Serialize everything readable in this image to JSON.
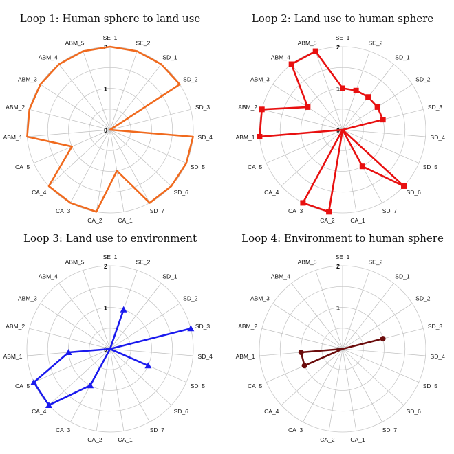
{
  "chart_data": [
    {
      "type": "radar",
      "title": "Loop 1: Human sphere to land use",
      "axes": [
        "SE_1",
        "SE_2",
        "SD_1",
        "SD_2",
        "SD_3",
        "SD_4",
        "SD_5",
        "SD_6",
        "SD_7",
        "CA_1",
        "CA_2",
        "CA_3",
        "CA_4",
        "CA_5",
        "ABM_1",
        "ABM_2",
        "ABM_3",
        "ABM_4",
        "ABM_5"
      ],
      "r_ticks": [
        0,
        1,
        2
      ],
      "rlim": [
        0,
        2
      ],
      "grid_rings": [
        0.5,
        1,
        1.5,
        2
      ],
      "series": [
        {
          "values": [
            2,
            2,
            2,
            2,
            0,
            2,
            2,
            2,
            2,
            1,
            2,
            2,
            2,
            1,
            2,
            2,
            2,
            2,
            2
          ],
          "color": "#f06a1e",
          "marker": "none"
        }
      ]
    },
    {
      "type": "radar",
      "title": "Loop 2: Land use to human sphere",
      "axes": [
        "SE_1",
        "SE_2",
        "SD_1",
        "SD_2",
        "SD_3",
        "SD_4",
        "SD_5",
        "SD_6",
        "SD_7",
        "CA_1",
        "CA_2",
        "CA_3",
        "CA_4",
        "CA_5",
        "ABM_1",
        "ABM_2",
        "ABM_3",
        "ABM_4",
        "ABM_5"
      ],
      "r_ticks": [
        0,
        1,
        2
      ],
      "rlim": [
        0,
        2
      ],
      "grid_rings": [
        0.5,
        1,
        1.5,
        2
      ],
      "series": [
        {
          "values": [
            1,
            1,
            1,
            1,
            1,
            0,
            0,
            2,
            1,
            0,
            2,
            2,
            0,
            0,
            2,
            2,
            1,
            2,
            2
          ],
          "color": "#e81010",
          "marker": "square"
        }
      ]
    },
    {
      "type": "radar",
      "title": "Loop 3: Land use to environment",
      "axes": [
        "SE_1",
        "SE_2",
        "SD_1",
        "SD_2",
        "SD_3",
        "SD_4",
        "SD_5",
        "SD_6",
        "SD_7",
        "CA_1",
        "CA_2",
        "CA_3",
        "CA_4",
        "CA_5",
        "ABM_1",
        "ABM_2",
        "ABM_3",
        "ABM_4",
        "ABM_5"
      ],
      "r_ticks": [
        0,
        1,
        2
      ],
      "rlim": [
        0,
        2
      ],
      "grid_rings": [
        0.5,
        1,
        1.5,
        2
      ],
      "series": [
        {
          "values": [
            0,
            1,
            0,
            0,
            2,
            0,
            1,
            0,
            0,
            0,
            0,
            1,
            2,
            2,
            1,
            0,
            0,
            0,
            0
          ],
          "color": "#1a1aee",
          "marker": "triangle"
        }
      ]
    },
    {
      "type": "radar",
      "title": "Loop 4: Environment to human sphere",
      "axes": [
        "SE_1",
        "SE_2",
        "SD_1",
        "SD_2",
        "SD_3",
        "SD_4",
        "SD_5",
        "SD_6",
        "SD_7",
        "CA_1",
        "CA_2",
        "CA_3",
        "CA_4",
        "CA_5",
        "ABM_1",
        "ABM_2",
        "ABM_3",
        "ABM_4",
        "ABM_5"
      ],
      "r_ticks": [
        0,
        1,
        2
      ],
      "rlim": [
        0,
        2
      ],
      "grid_rings": [
        0.5,
        1,
        1.5,
        2
      ],
      "series": [
        {
          "values": [
            0,
            0,
            0,
            0,
            1,
            0,
            0,
            0,
            0,
            0,
            0,
            0,
            0,
            1,
            1,
            0,
            0,
            0,
            0
          ],
          "color": "#6b0c0c",
          "marker": "circle"
        }
      ]
    }
  ]
}
